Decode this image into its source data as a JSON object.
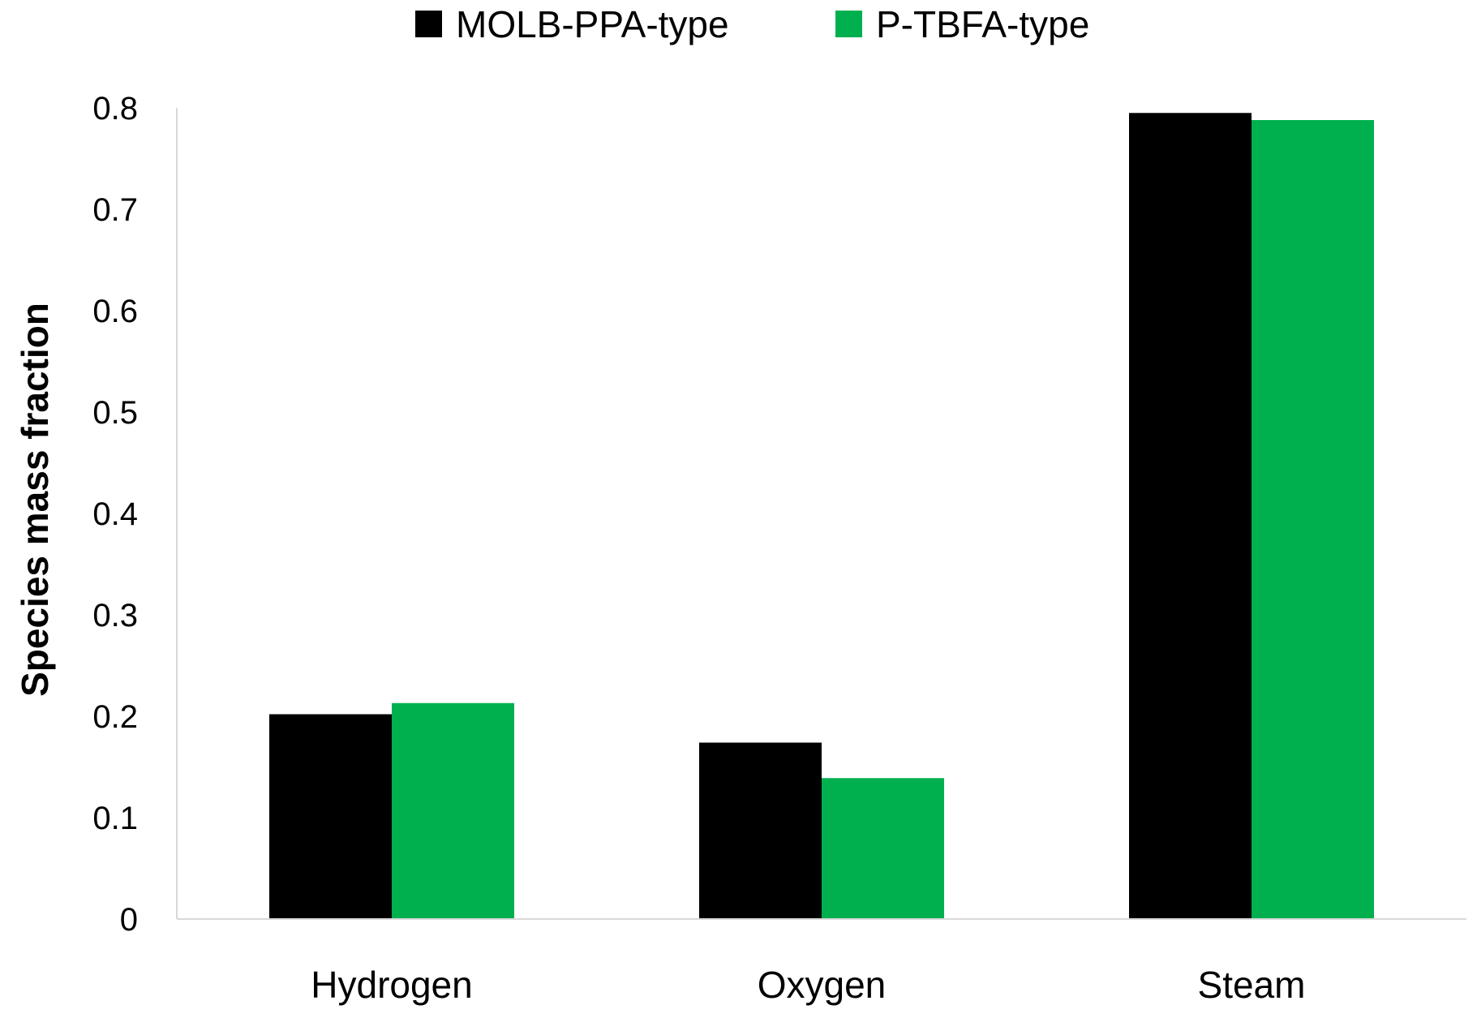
{
  "chart_data": {
    "type": "bar",
    "title": "",
    "xlabel": "",
    "ylabel": "Species mass fraction",
    "categories": [
      "Hydrogen",
      "Oxygen",
      "Steam"
    ],
    "series": [
      {
        "name": "MOLB-PPA-type",
        "color": "#000000",
        "values": [
          0.202,
          0.174,
          0.795
        ]
      },
      {
        "name": "P-TBFA-type",
        "color": "#00b04f",
        "values": [
          0.213,
          0.139,
          0.788
        ]
      }
    ],
    "ylim": [
      0,
      0.8
    ],
    "yticks": [
      "0",
      "0.1",
      "0.2",
      "0.3",
      "0.4",
      "0.5",
      "0.6",
      "0.7",
      "0.8"
    ],
    "grid": false,
    "legend_position": "top-center"
  }
}
